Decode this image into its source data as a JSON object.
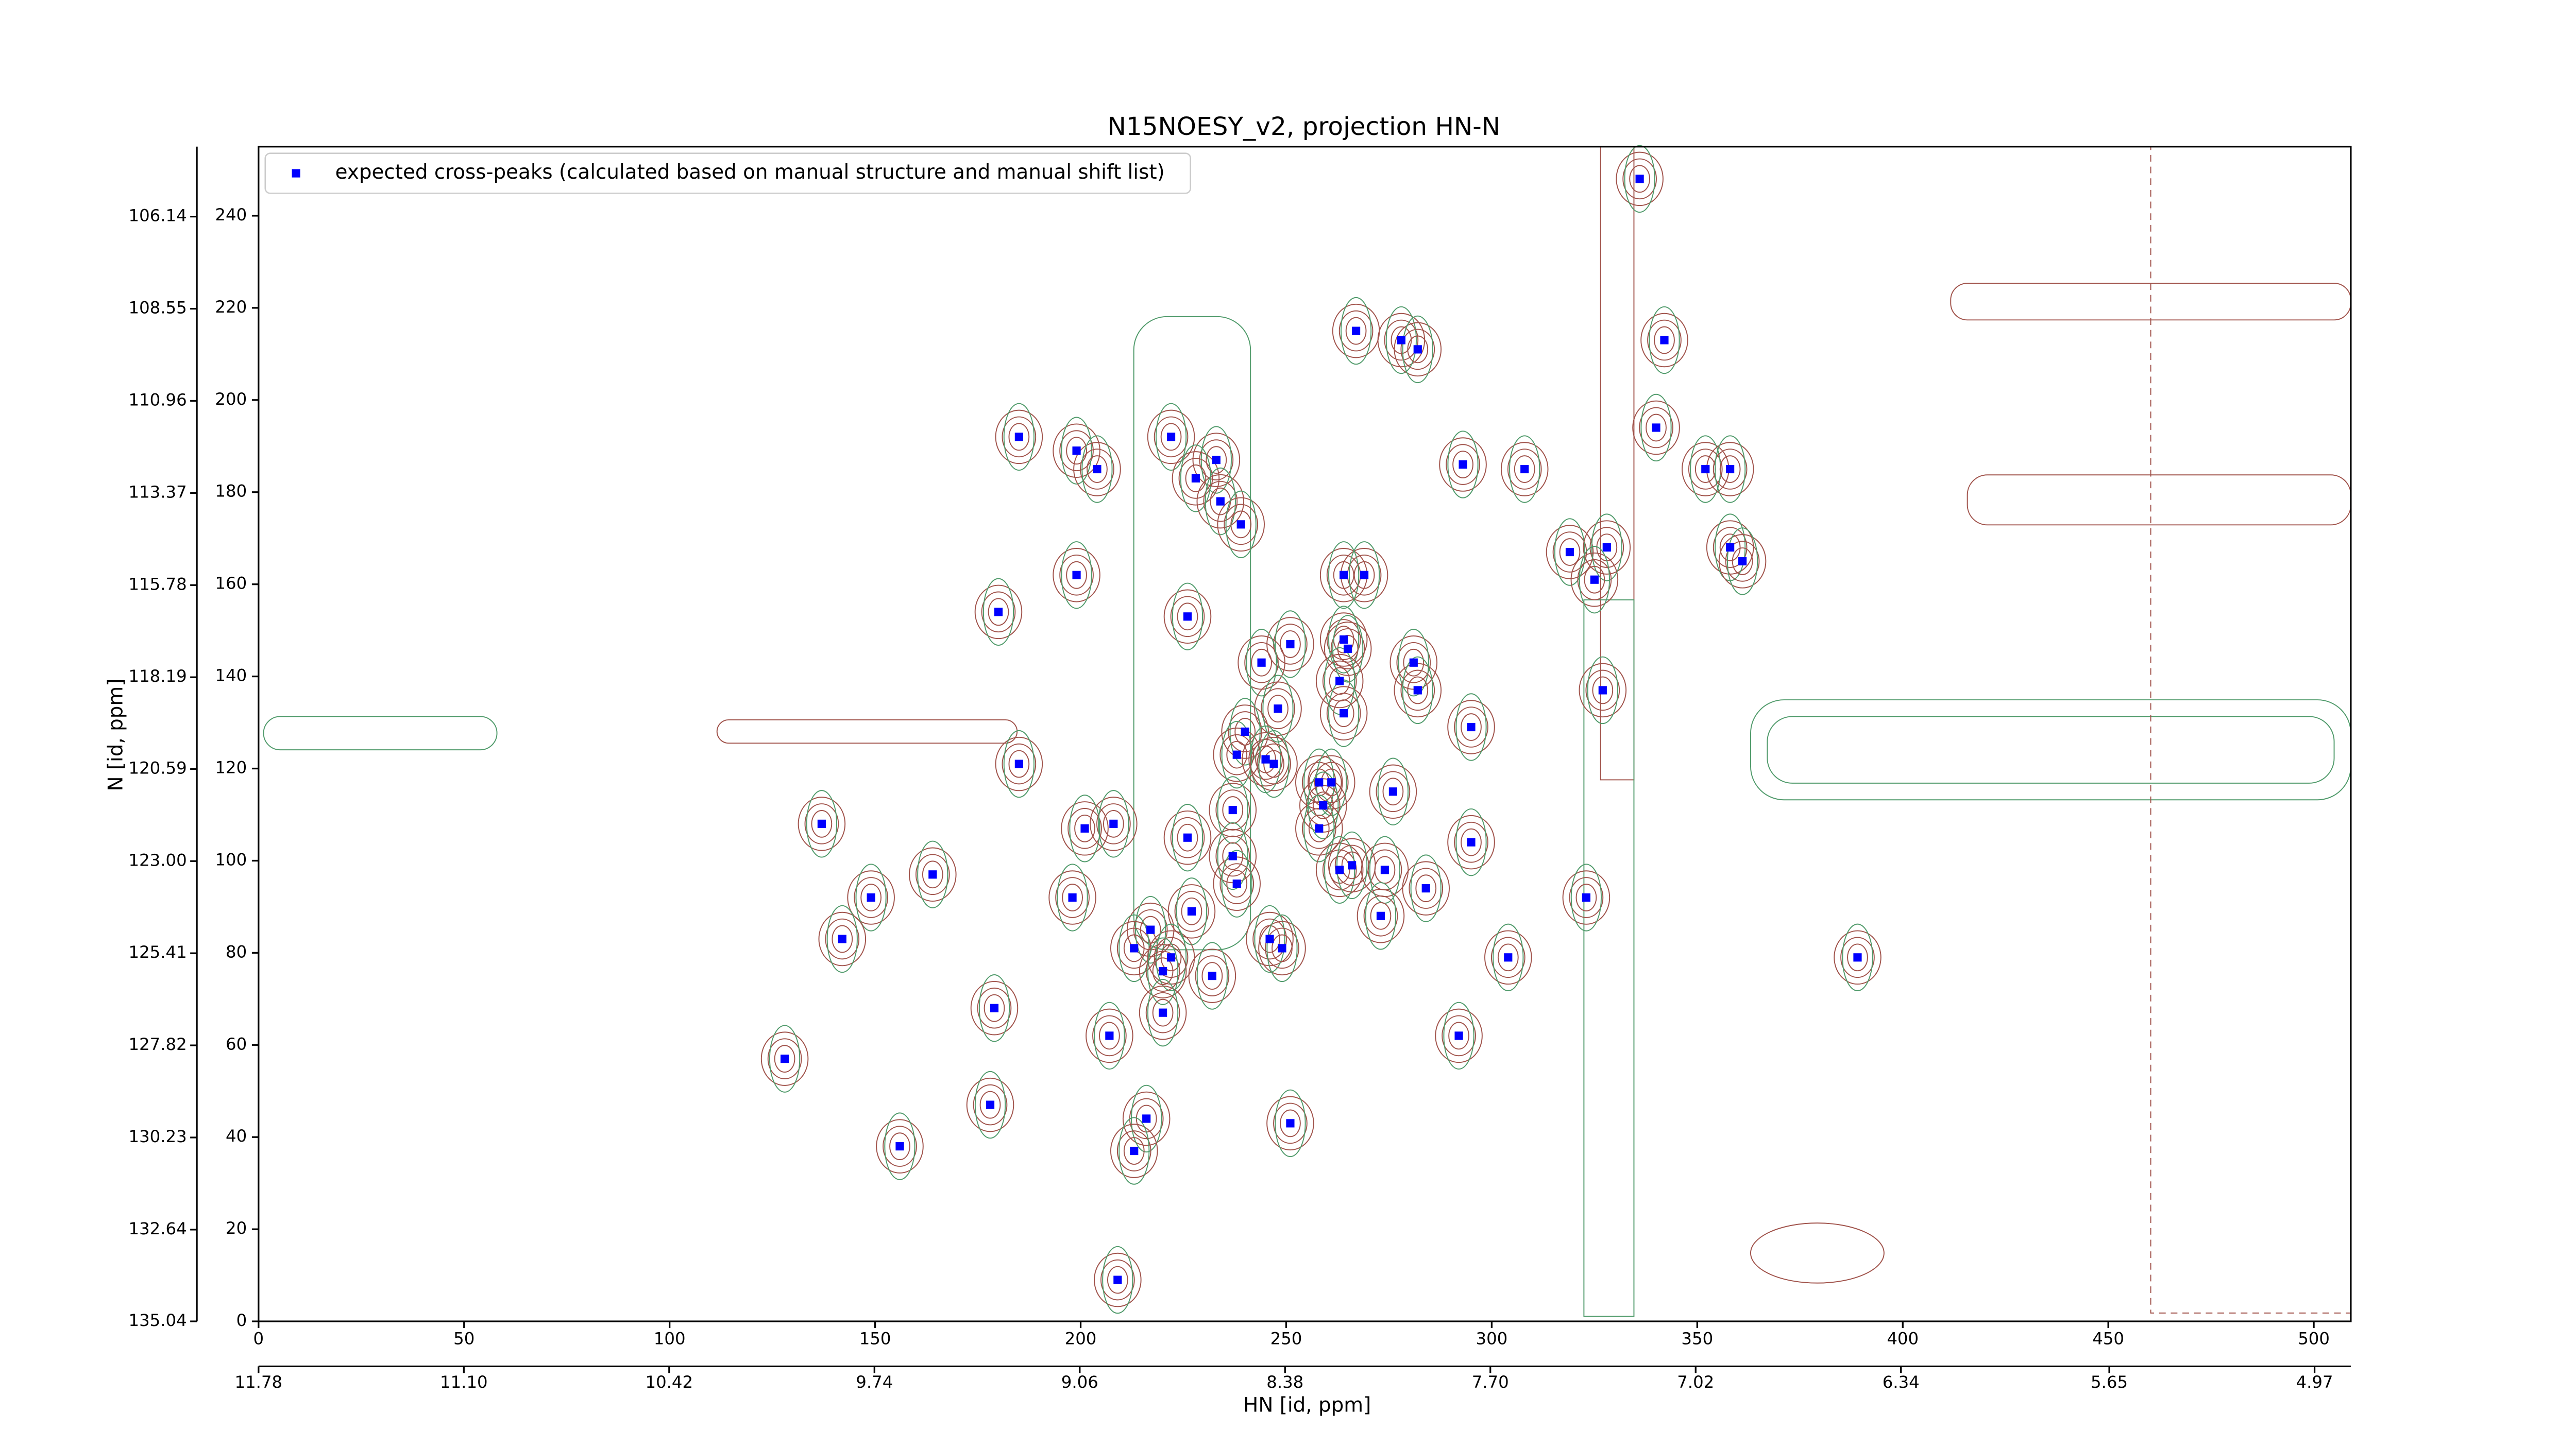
{
  "chart_data": {
    "type": "scatter",
    "title": "N15NOESY_v2, projection HN-N",
    "xlabel": "HN [id, ppm]",
    "ylabel": "N [id, ppm]",
    "xlim": [
      0,
      509
    ],
    "ylim": [
      0,
      255
    ],
    "xticks": [
      0,
      50,
      100,
      150,
      200,
      250,
      300,
      350,
      400,
      450,
      500
    ],
    "yticks": [
      0,
      20,
      40,
      60,
      80,
      100,
      120,
      140,
      160,
      180,
      200,
      220,
      240
    ],
    "x2lim": [
      11.78,
      4.85
    ],
    "x2ticks": [
      11.78,
      {
        "value": 11.1,
        "label": "11.10"
      },
      10.42,
      9.74,
      9.06,
      8.38,
      {
        "value": 7.7,
        "label": "7.70"
      },
      7.02,
      6.34,
      5.65,
      4.97
    ],
    "y2lim": [
      135.04,
      104.31
    ],
    "y2ticks": [
      135.04,
      132.64,
      130.23,
      127.82,
      125.41,
      {
        "value": 123,
        "label": "123.00"
      },
      120.59,
      118.19,
      115.78,
      113.37,
      110.96,
      108.55,
      106.14
    ],
    "legend": "upper left",
    "series": [
      {
        "name": "expected cross-peaks (calculated based on manual structure and manual shift list)",
        "color": "#0000ff",
        "x": [
          336,
          267,
          278,
          282,
          342,
          185,
          199,
          204,
          222,
          233,
          228,
          234,
          239,
          293,
          308,
          340,
          352,
          358,
          319,
          328,
          325,
          358,
          361,
          199,
          180,
          226,
          264,
          269,
          251,
          264,
          265,
          244,
          281,
          263,
          282,
          327,
          248,
          264,
          295,
          240,
          238,
          245,
          247,
          185,
          258,
          261,
          276,
          259,
          237,
          137,
          201,
          208,
          258,
          226,
          295,
          237,
          263,
          266,
          274,
          164,
          238,
          284,
          198,
          149,
          323,
          227,
          273,
          217,
          142,
          213,
          246,
          249,
          222,
          304,
          389,
          232,
          220,
          179,
          220,
          207,
          292,
          128,
          178,
          216,
          251,
          213,
          156,
          209
        ],
        "y": [
          248,
          215,
          213,
          211,
          213,
          192,
          189,
          185,
          192,
          187,
          183,
          178,
          173,
          186,
          185,
          194,
          185,
          185,
          167,
          168,
          161,
          168,
          165,
          162,
          154,
          153,
          162,
          162,
          147,
          148,
          146,
          143,
          143,
          139,
          137,
          137,
          133,
          132,
          129,
          128,
          123,
          122,
          121,
          121,
          117,
          117,
          115,
          112,
          111,
          108,
          107,
          108,
          107,
          105,
          104,
          101,
          98,
          99,
          98,
          97,
          95,
          94,
          92,
          92,
          92,
          89,
          88,
          85,
          83,
          81,
          83,
          81,
          79,
          79,
          79,
          75,
          76,
          68,
          67,
          62,
          62,
          57,
          47,
          44,
          43,
          37,
          38,
          9
        ]
      }
    ]
  }
}
